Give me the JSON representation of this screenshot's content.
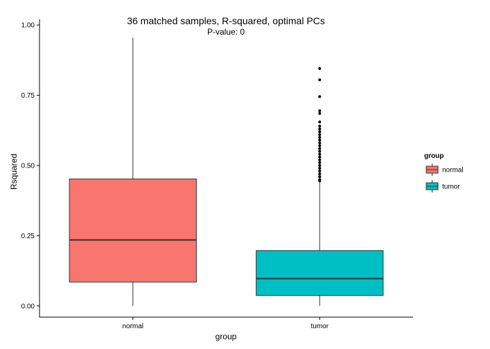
{
  "chart_data": {
    "type": "boxplot",
    "title": "36 matched samples, R-squared, optimal PCs",
    "subtitle": "P-value: 0",
    "xlabel": "group",
    "ylabel": "Rsquared",
    "ylim": [
      -0.04,
      1.02
    ],
    "yticks": [
      0.0,
      0.25,
      0.5,
      0.75,
      1.0
    ],
    "ytick_labels": [
      "0.00",
      "0.25",
      "0.50",
      "0.75",
      "1.00"
    ],
    "categories": [
      "normal",
      "tumor"
    ],
    "grid": false,
    "legend": {
      "title": "group",
      "position": "right",
      "entries": [
        "normal",
        "tumor"
      ]
    },
    "colors": {
      "normal": "#F8766D",
      "tumor": "#00BFC4"
    },
    "boxes": [
      {
        "name": "normal",
        "whisker_low": 0.0,
        "q1": 0.085,
        "median": 0.235,
        "q3": 0.452,
        "whisker_high": 0.955,
        "outliers": []
      },
      {
        "name": "tumor",
        "whisker_low": 0.0,
        "q1": 0.037,
        "median": 0.097,
        "q3": 0.197,
        "whisker_high": 0.44,
        "outliers": [
          0.845,
          0.805,
          0.745,
          0.695,
          0.685,
          0.655,
          0.64,
          0.63,
          0.62,
          0.61,
          0.6,
          0.59,
          0.58,
          0.57,
          0.56,
          0.55,
          0.54,
          0.53,
          0.52,
          0.51,
          0.5,
          0.49,
          0.48,
          0.47,
          0.46,
          0.45,
          0.445
        ]
      }
    ]
  }
}
